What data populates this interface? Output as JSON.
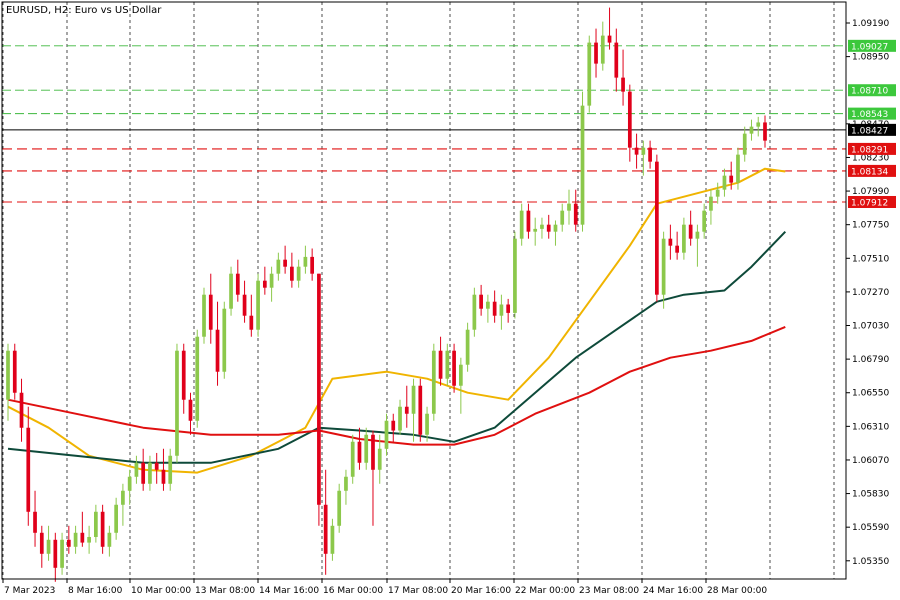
{
  "chart_data": {
    "type": "candlestick",
    "title": "EURUSD, H2:  Euro vs US Dollar",
    "symbol": "EURUSD",
    "timeframe": "H2",
    "description": "Euro vs US Dollar",
    "grid": "vertical dashed",
    "ylim": [
      1.0522,
      1.0934
    ],
    "y_ticks": [
      "1.09190",
      "1.08950",
      "1.08470",
      "1.08230",
      "1.07990",
      "1.07750",
      "1.07510",
      "1.07270",
      "1.07030",
      "1.06790",
      "1.06550",
      "1.06310",
      "1.06070",
      "1.05830",
      "1.05590",
      "1.05350"
    ],
    "x_ticks": [
      "7 Mar 2023",
      "8 Mar 16:00",
      "10 Mar 00:00",
      "13 Mar 08:00",
      "14 Mar 16:00",
      "16 Mar 00:00",
      "17 Mar 08:00",
      "20 Mar 16:00",
      "22 Mar 00:00",
      "23 Mar 08:00",
      "24 Mar 16:00",
      "28 Mar 00:00"
    ],
    "colors": {
      "bull": "#8cc84b",
      "bear": "#e0001a",
      "ma_fast": "#f0b400",
      "ma_mid": "#0e4a3a",
      "ma_slow": "#e01010",
      "green_line": "#3cb83c",
      "red_line": "#e01010",
      "current_line": "#000000",
      "green_label_bg": "#3cc83c",
      "red_label_bg": "#e01010"
    },
    "current_price": "1.08427",
    "horizontal_levels": [
      {
        "value": 1.09027,
        "label": "1.09027",
        "color": "green"
      },
      {
        "value": 1.0871,
        "label": "1.08710",
        "color": "green"
      },
      {
        "value": 1.08543,
        "label": "1.08543",
        "color": "green"
      },
      {
        "value": 1.08291,
        "label": "1.08291",
        "color": "red"
      },
      {
        "value": 1.08134,
        "label": "1.08134",
        "color": "red"
      },
      {
        "value": 1.07912,
        "label": "1.07912",
        "color": "red"
      }
    ],
    "ohlc": [
      [
        1.065,
        1.069,
        1.0635,
        1.0685
      ],
      [
        1.0685,
        1.069,
        1.065,
        1.0655
      ],
      [
        1.0655,
        1.0665,
        1.062,
        1.063
      ],
      [
        1.063,
        1.0645,
        1.056,
        1.057
      ],
      [
        1.057,
        1.0585,
        1.0545,
        1.0555
      ],
      [
        1.0555,
        1.056,
        1.053,
        1.054
      ],
      [
        1.054,
        1.056,
        1.0535,
        1.055
      ],
      [
        1.055,
        1.0555,
        1.052,
        1.053
      ],
      [
        1.053,
        1.0555,
        1.0525,
        1.055
      ],
      [
        1.055,
        1.056,
        1.054,
        1.0545
      ],
      [
        1.0545,
        1.056,
        1.054,
        1.0555
      ],
      [
        1.0555,
        1.057,
        1.0545,
        1.0548
      ],
      [
        1.0548,
        1.056,
        1.054,
        1.0552
      ],
      [
        1.0552,
        1.0575,
        1.0548,
        1.057
      ],
      [
        1.057,
        1.0575,
        1.054,
        1.0545
      ],
      [
        1.0545,
        1.056,
        1.0538,
        1.0555
      ],
      [
        1.0555,
        1.058,
        1.055,
        1.0575
      ],
      [
        1.0575,
        1.059,
        1.056,
        1.0585
      ],
      [
        1.0585,
        1.06,
        1.0575,
        1.0595
      ],
      [
        1.0595,
        1.061,
        1.059,
        1.0605
      ],
      [
        1.0605,
        1.0615,
        1.0585,
        1.059
      ],
      [
        1.059,
        1.061,
        1.0585,
        1.0605
      ],
      [
        1.0605,
        1.0612,
        1.059,
        1.06
      ],
      [
        1.06,
        1.0615,
        1.0585,
        1.059
      ],
      [
        1.059,
        1.0615,
        1.0585,
        1.061
      ],
      [
        1.061,
        1.069,
        1.0605,
        1.0685
      ],
      [
        1.0685,
        1.069,
        1.064,
        1.065
      ],
      [
        1.065,
        1.0655,
        1.0625,
        1.0635
      ],
      [
        1.0635,
        1.07,
        1.063,
        1.0695
      ],
      [
        1.0695,
        1.073,
        1.069,
        1.0725
      ],
      [
        1.0725,
        1.074,
        1.069,
        1.07
      ],
      [
        1.07,
        1.072,
        1.066,
        1.067
      ],
      [
        1.067,
        1.072,
        1.0665,
        1.0715
      ],
      [
        1.0715,
        1.0745,
        1.071,
        1.074
      ],
      [
        1.074,
        1.075,
        1.072,
        1.0725
      ],
      [
        1.0725,
        1.0735,
        1.0705,
        1.071
      ],
      [
        1.071,
        1.0725,
        1.0695,
        1.07
      ],
      [
        1.07,
        1.074,
        1.0695,
        1.0735
      ],
      [
        1.0735,
        1.0745,
        1.0725,
        1.073
      ],
      [
        1.073,
        1.0745,
        1.072,
        1.074
      ],
      [
        1.074,
        1.0755,
        1.0735,
        1.075
      ],
      [
        1.075,
        1.076,
        1.074,
        1.0745
      ],
      [
        1.0745,
        1.0755,
        1.073,
        1.0735
      ],
      [
        1.0735,
        1.075,
        1.073,
        1.0745
      ],
      [
        1.0745,
        1.076,
        1.074,
        1.0752
      ],
      [
        1.0752,
        1.0758,
        1.0735,
        1.074
      ],
      [
        1.074,
        1.074,
        1.056,
        1.0575
      ],
      [
        1.0575,
        1.06,
        1.0525,
        1.054
      ],
      [
        1.054,
        1.0565,
        1.0535,
        1.056
      ],
      [
        1.056,
        1.059,
        1.0555,
        1.0585
      ],
      [
        1.0585,
        1.06,
        1.0575,
        1.0595
      ],
      [
        1.0595,
        1.0625,
        1.059,
        1.062
      ],
      [
        1.062,
        1.063,
        1.06,
        1.0605
      ],
      [
        1.0605,
        1.063,
        1.06,
        1.0625
      ],
      [
        1.0625,
        1.0628,
        1.056,
        1.06
      ],
      [
        1.06,
        1.0625,
        1.059,
        1.0615
      ],
      [
        1.0615,
        1.064,
        1.061,
        1.0635
      ],
      [
        1.0635,
        1.064,
        1.062,
        1.0628
      ],
      [
        1.0628,
        1.065,
        1.0625,
        1.0645
      ],
      [
        1.0645,
        1.066,
        1.063,
        1.064
      ],
      [
        1.064,
        1.0665,
        1.062,
        1.066
      ],
      [
        1.066,
        1.0665,
        1.062,
        1.0625
      ],
      [
        1.0625,
        1.0645,
        1.062,
        1.064
      ],
      [
        1.064,
        1.069,
        1.0635,
        1.0685
      ],
      [
        1.0685,
        1.0695,
        1.066,
        1.0665
      ],
      [
        1.0665,
        1.069,
        1.066,
        1.0685
      ],
      [
        1.0685,
        1.069,
        1.0655,
        1.066
      ],
      [
        1.066,
        1.068,
        1.064,
        1.0675
      ],
      [
        1.0675,
        1.0705,
        1.067,
        1.07
      ],
      [
        1.07,
        1.073,
        1.0695,
        1.0725
      ],
      [
        1.0725,
        1.0732,
        1.071,
        1.0715
      ],
      [
        1.0715,
        1.0725,
        1.0705,
        1.072
      ],
      [
        1.072,
        1.0728,
        1.0705,
        1.071
      ],
      [
        1.071,
        1.0725,
        1.07,
        1.0718
      ],
      [
        1.0718,
        1.0722,
        1.0705,
        1.0712
      ],
      [
        1.0712,
        1.077,
        1.0708,
        1.0765
      ],
      [
        1.0765,
        1.079,
        1.076,
        1.0785
      ],
      [
        1.0785,
        1.079,
        1.0765,
        1.077
      ],
      [
        1.077,
        1.078,
        1.076,
        1.0772
      ],
      [
        1.0772,
        1.078,
        1.0765,
        1.0775
      ],
      [
        1.0775,
        1.0782,
        1.0765,
        1.077
      ],
      [
        1.077,
        1.0778,
        1.076,
        1.0775
      ],
      [
        1.0775,
        1.079,
        1.077,
        1.0785
      ],
      [
        1.0785,
        1.08,
        1.0775,
        1.079
      ],
      [
        1.079,
        1.08,
        1.077,
        1.0775
      ],
      [
        1.0775,
        1.087,
        1.077,
        1.086
      ],
      [
        1.086,
        1.091,
        1.0855,
        1.0905
      ],
      [
        1.0905,
        1.0915,
        1.088,
        1.089
      ],
      [
        1.089,
        1.092,
        1.0885,
        1.091
      ],
      [
        1.091,
        1.093,
        1.09,
        1.0905
      ],
      [
        1.0905,
        1.0915,
        1.087,
        1.088
      ],
      [
        1.088,
        1.09,
        1.086,
        1.087
      ],
      [
        1.087,
        1.0875,
        1.082,
        1.083
      ],
      [
        1.083,
        1.084,
        1.0815,
        1.0825
      ],
      [
        1.0825,
        1.0835,
        1.081,
        1.083
      ],
      [
        1.083,
        1.0835,
        1.0815,
        1.082
      ],
      [
        1.082,
        1.0825,
        1.072,
        1.0725
      ],
      [
        1.0725,
        1.077,
        1.0715,
        1.0765
      ],
      [
        1.0765,
        1.0775,
        1.075,
        1.076
      ],
      [
        1.076,
        1.077,
        1.075,
        1.0755
      ],
      [
        1.0755,
        1.078,
        1.075,
        1.0775
      ],
      [
        1.0775,
        1.0785,
        1.076,
        1.0765
      ],
      [
        1.0765,
        1.0775,
        1.0745,
        1.077
      ],
      [
        1.077,
        1.079,
        1.0765,
        1.0785
      ],
      [
        1.0785,
        1.08,
        1.0775,
        1.0795
      ],
      [
        1.0795,
        1.0805,
        1.079,
        1.08
      ],
      [
        1.08,
        1.0815,
        1.0795,
        1.081
      ],
      [
        1.081,
        1.082,
        1.08,
        1.0805
      ],
      [
        1.0805,
        1.083,
        1.08,
        1.0825
      ],
      [
        1.0825,
        1.0845,
        1.082,
        1.084
      ],
      [
        1.084,
        1.085,
        1.0835,
        1.0845
      ],
      [
        1.0845,
        1.0852,
        1.0838,
        1.0848
      ],
      [
        1.0848,
        1.0853,
        1.083,
        1.0835
      ]
    ],
    "moving_averages": [
      {
        "name": "fast",
        "color": "ma_fast",
        "points": [
          [
            0,
            1.0645
          ],
          [
            6,
            1.063
          ],
          [
            12,
            1.061
          ],
          [
            20,
            1.06
          ],
          [
            28,
            1.0598
          ],
          [
            36,
            1.061
          ],
          [
            44,
            1.063
          ],
          [
            48,
            1.0665
          ],
          [
            56,
            1.067
          ],
          [
            62,
            1.0665
          ],
          [
            68,
            1.0655
          ],
          [
            74,
            1.065
          ],
          [
            80,
            1.068
          ],
          [
            86,
            1.072
          ],
          [
            92,
            1.076
          ],
          [
            96,
            1.079
          ],
          [
            100,
            1.0795
          ],
          [
            104,
            1.08
          ],
          [
            108,
            1.0805
          ],
          [
            112,
            1.0815
          ],
          [
            115,
            1.0813
          ]
        ]
      },
      {
        "name": "mid",
        "color": "ma_mid",
        "points": [
          [
            0,
            1.0615
          ],
          [
            10,
            1.061
          ],
          [
            20,
            1.0605
          ],
          [
            30,
            1.0605
          ],
          [
            40,
            1.0615
          ],
          [
            46,
            1.063
          ],
          [
            52,
            1.0628
          ],
          [
            60,
            1.0625
          ],
          [
            66,
            1.062
          ],
          [
            72,
            1.063
          ],
          [
            78,
            1.0655
          ],
          [
            84,
            1.068
          ],
          [
            90,
            1.07
          ],
          [
            96,
            1.072
          ],
          [
            100,
            1.0725
          ],
          [
            106,
            1.0728
          ],
          [
            110,
            1.0745
          ],
          [
            115,
            1.077
          ]
        ]
      },
      {
        "name": "slow",
        "color": "ma_slow",
        "points": [
          [
            0,
            1.065
          ],
          [
            10,
            1.064
          ],
          [
            20,
            1.063
          ],
          [
            30,
            1.0625
          ],
          [
            40,
            1.0625
          ],
          [
            46,
            1.0628
          ],
          [
            52,
            1.0622
          ],
          [
            60,
            1.0618
          ],
          [
            66,
            1.0618
          ],
          [
            72,
            1.0625
          ],
          [
            78,
            1.064
          ],
          [
            86,
            1.0655
          ],
          [
            92,
            1.067
          ],
          [
            98,
            1.068
          ],
          [
            104,
            1.0685
          ],
          [
            110,
            1.0692
          ],
          [
            115,
            1.0702
          ]
        ]
      }
    ]
  }
}
